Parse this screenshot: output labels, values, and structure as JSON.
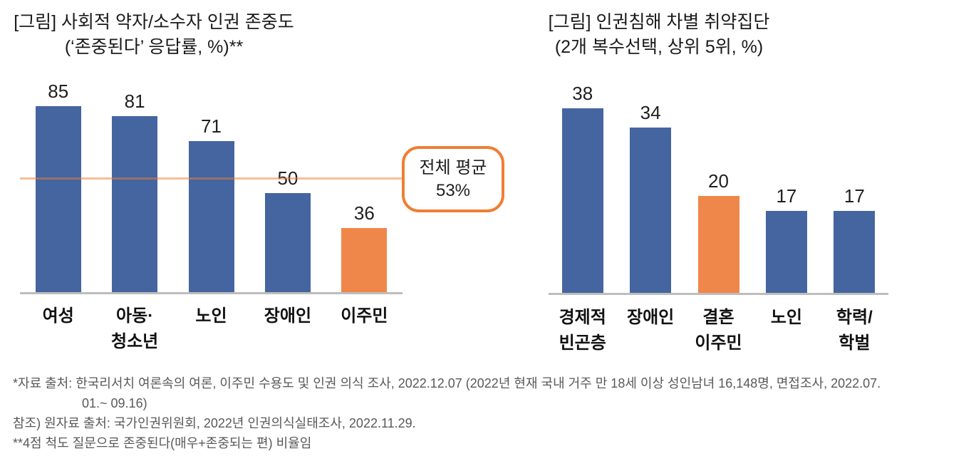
{
  "chart_data": [
    {
      "type": "bar",
      "title": "[그림] 사회적 약자/소수자 인권 존중도",
      "subtitle": "(‘존중된다’ 응답률, %)**",
      "categories": [
        "여성",
        "아동·\n청소년",
        "노인",
        "장애인",
        "이주민"
      ],
      "values": [
        85,
        81,
        71,
        50,
        36
      ],
      "data_labels": [
        85,
        81,
        71,
        50,
        36
      ],
      "highlight_index": 4,
      "bar_color": "#4465a0",
      "highlight_color": "#f0874a",
      "average_line": {
        "value": 53,
        "label": "전체 평균\n53%",
        "line_color": "#f5b183",
        "box_border_color": "#f07e35"
      },
      "ylim": [
        10,
        95
      ],
      "gridlines": false,
      "legend": false
    },
    {
      "type": "bar",
      "title": "[그림] 인권침해 차별 취약집단",
      "subtitle": "(2개 복수선택, 상위 5위, %)",
      "categories": [
        "경제적\n빈곤층",
        "장애인",
        "결혼\n이주민",
        "노인",
        "학력/\n학벌"
      ],
      "values": [
        38,
        34,
        20,
        17,
        17
      ],
      "data_labels": [
        38,
        34,
        20,
        17,
        17
      ],
      "highlight_index": 2,
      "bar_color": "#4465a0",
      "highlight_color": "#f0874a",
      "ylim": [
        0,
        42
      ],
      "gridlines": false,
      "legend": false
    }
  ],
  "footnotes": {
    "line1": "*자료 출처: 한국리서치 여론속의 여론, 이주민 수용도 및 인권 의식 조사, 2022.12.07 (2022년 현재 국내 거주 만 18세 이상 성인남녀 16,148명, 면접조사, 2022.07.",
    "line2": "01.~ 09.16)",
    "line3": "참조) 원자료 출처: 국가인권위원회, 2022년 인권의식실태조사, 2022.11.29.",
    "line4": "**4점 척도 질문으로 존중된다(매우+존중되는 편) 비율임"
  }
}
